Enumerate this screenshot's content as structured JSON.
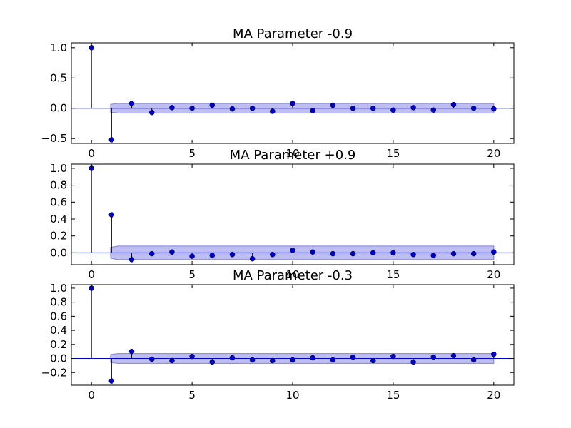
{
  "chart_data": [
    {
      "type": "stem",
      "title": "MA Parameter -0.9",
      "xlim": [
        -1,
        21
      ],
      "ylim": [
        -0.58,
        1.08
      ],
      "xticks": [
        0,
        5,
        10,
        15,
        20
      ],
      "yticks": [
        1.0,
        0.5,
        0.0,
        -0.5
      ],
      "ytick_labels": [
        "1.0",
        "0.5",
        "0.0",
        "−0.5"
      ],
      "x": [
        0,
        1,
        2,
        3,
        4,
        5,
        6,
        7,
        8,
        9,
        10,
        11,
        12,
        13,
        14,
        15,
        16,
        17,
        18,
        19,
        20
      ],
      "values": [
        1.0,
        -0.52,
        0.08,
        -0.07,
        0.01,
        0.0,
        0.05,
        -0.01,
        0.0,
        -0.05,
        0.08,
        -0.04,
        0.05,
        0.0,
        0.0,
        -0.03,
        0.01,
        -0.03,
        0.06,
        0.0,
        -0.01
      ],
      "confidence_band": {
        "x_start": 1,
        "x_end": 20,
        "half_width": 0.08
      },
      "grid": false
    },
    {
      "type": "stem",
      "title": "MA Parameter +0.9",
      "xlim": [
        -1,
        21
      ],
      "ylim": [
        -0.14,
        1.05
      ],
      "xticks": [
        0,
        5,
        10,
        15,
        20
      ],
      "yticks": [
        1.0,
        0.8,
        0.6,
        0.4,
        0.2,
        0.0
      ],
      "ytick_labels": [
        "1.0",
        "0.8",
        "0.6",
        "0.4",
        "0.2",
        "0.0"
      ],
      "x": [
        0,
        1,
        2,
        3,
        4,
        5,
        6,
        7,
        8,
        9,
        10,
        11,
        12,
        13,
        14,
        15,
        16,
        17,
        18,
        19,
        20
      ],
      "values": [
        1.0,
        0.45,
        -0.08,
        -0.01,
        0.01,
        -0.04,
        -0.03,
        -0.02,
        -0.07,
        -0.02,
        0.03,
        0.01,
        -0.01,
        -0.01,
        0.0,
        0.0,
        -0.02,
        -0.03,
        -0.01,
        -0.01,
        0.01
      ],
      "confidence_band": {
        "x_start": 1,
        "x_end": 20,
        "half_width": 0.08
      },
      "grid": false
    },
    {
      "type": "stem",
      "title": "MA Parameter -0.3",
      "xlim": [
        -1,
        21
      ],
      "ylim": [
        -0.38,
        1.05
      ],
      "xticks": [
        0,
        5,
        10,
        15,
        20
      ],
      "yticks": [
        1.0,
        0.8,
        0.6,
        0.4,
        0.2,
        0.0,
        -0.2
      ],
      "ytick_labels": [
        "1.0",
        "0.8",
        "0.6",
        "0.4",
        "0.2",
        "0.0",
        "−0.2"
      ],
      "x": [
        0,
        1,
        2,
        3,
        4,
        5,
        6,
        7,
        8,
        9,
        10,
        11,
        12,
        13,
        14,
        15,
        16,
        17,
        18,
        19,
        20
      ],
      "values": [
        1.0,
        -0.32,
        0.1,
        -0.01,
        -0.03,
        0.03,
        -0.05,
        0.01,
        -0.02,
        -0.03,
        -0.02,
        0.01,
        -0.02,
        0.02,
        -0.03,
        0.03,
        -0.05,
        0.02,
        0.04,
        -0.02,
        0.06
      ],
      "confidence_band": {
        "x_start": 1,
        "x_end": 20,
        "half_width": 0.07
      },
      "grid": false
    }
  ],
  "colors": {
    "marker": "#0000cc",
    "zero_line": "#0000cc",
    "band_fill": "#b3b3f0",
    "band_edge": "#6a6ad6",
    "stem": "#000000"
  }
}
